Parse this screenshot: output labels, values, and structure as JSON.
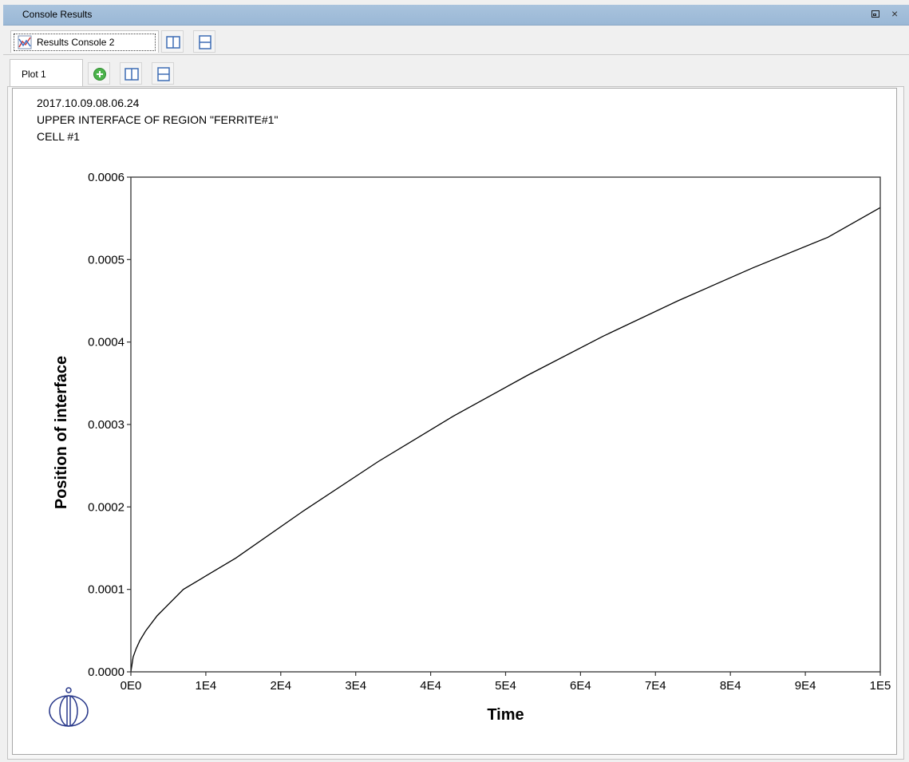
{
  "window": {
    "title": "Console Results",
    "close_glyph": "×"
  },
  "console_tabs": [
    {
      "label": "Results Console 2",
      "icon": "chart-icon"
    }
  ],
  "plot_tabs": [
    {
      "label": "Plot 1"
    }
  ],
  "toolbar_icons": [
    "add-plot-icon",
    "split-vertical-icon",
    "split-horizontal-icon"
  ],
  "header": {
    "line1": "2017.10.09.08.06.24",
    "line2": "UPPER INTERFACE OF REGION \"FERRITE#1\"",
    "line3": "CELL #1"
  },
  "chart_data": {
    "type": "line",
    "xlabel": "Time",
    "ylabel": "Position of interface",
    "xlim": [
      0,
      100000
    ],
    "ylim": [
      0,
      0.0006
    ],
    "x_ticks": [
      0,
      10000,
      20000,
      30000,
      40000,
      50000,
      60000,
      70000,
      80000,
      90000,
      100000
    ],
    "x_tick_labels": [
      "0E0",
      "1E4",
      "2E4",
      "3E4",
      "4E4",
      "5E4",
      "6E4",
      "7E4",
      "8E4",
      "9E4",
      "1E5"
    ],
    "y_ticks": [
      0,
      0.0001,
      0.0002,
      0.0003,
      0.0004,
      0.0005,
      0.0006
    ],
    "y_tick_labels": [
      "0.0000",
      "0.0001",
      "0.0002",
      "0.0003",
      "0.0004",
      "0.0005",
      "0.0006"
    ],
    "grid": false,
    "series": [
      {
        "color": "#000000",
        "x": [
          0,
          300,
          700,
          1200,
          2000,
          3500,
          7000,
          14000,
          23000,
          33000,
          43000,
          53000,
          63000,
          73000,
          83000,
          93000,
          100000
        ],
        "y": [
          0,
          1.8e-05,
          2.8e-05,
          3.8e-05,
          5e-05,
          6.8e-05,
          0.0001,
          0.000138,
          0.000195,
          0.000255,
          0.00031,
          0.00036,
          0.000407,
          0.00045,
          0.00049,
          0.000527,
          0.000563
        ]
      }
    ]
  },
  "logo": {
    "icon": "thermo-calc-logo-icon"
  }
}
